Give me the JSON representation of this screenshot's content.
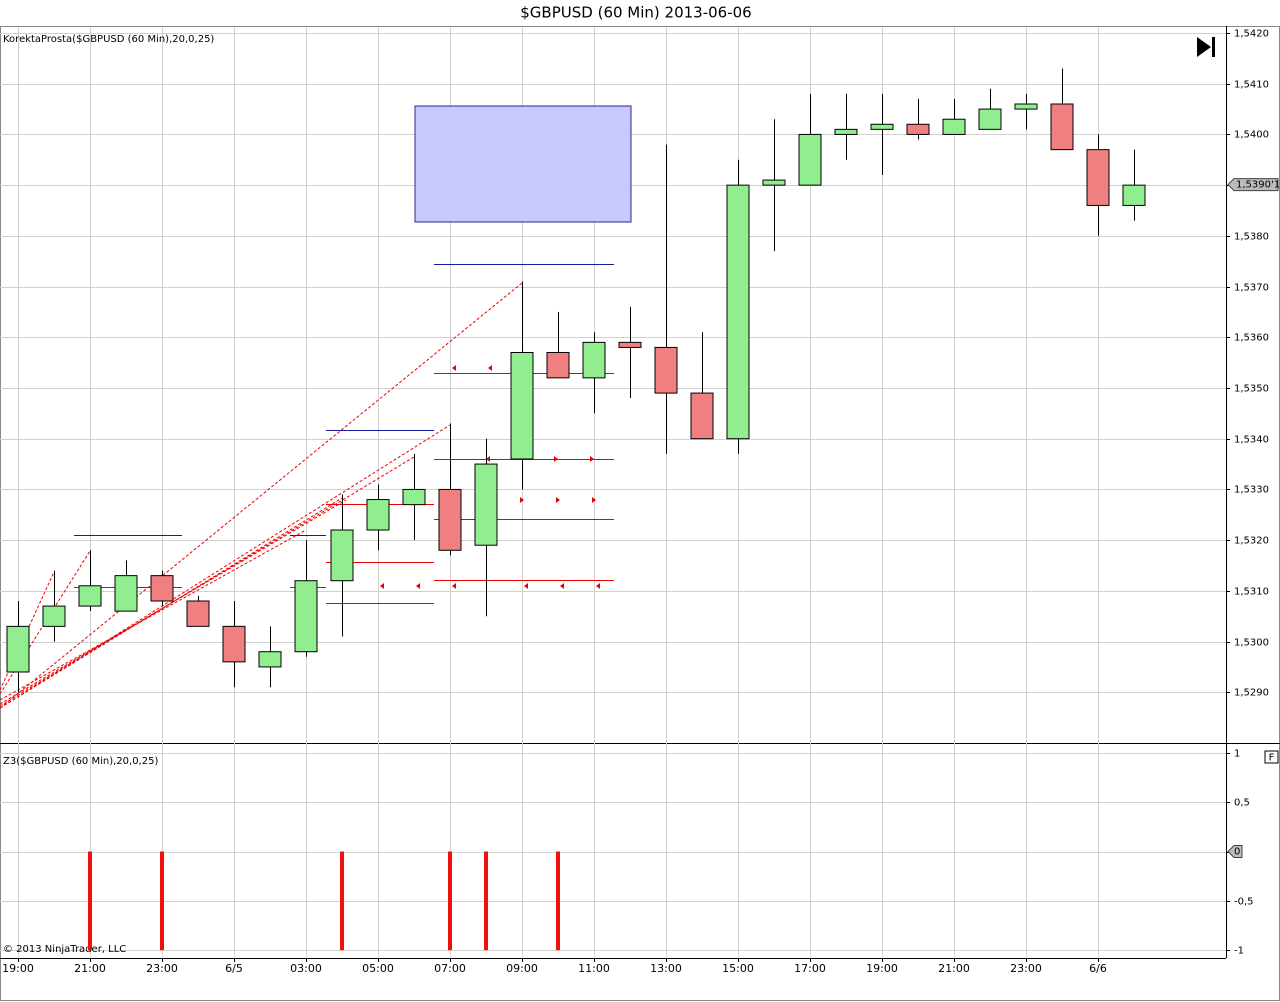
{
  "title": "$GBPUSD (60 Min)  2013-06-06",
  "copyright": "© 2013 NinjaTrader, LLC",
  "panel_button": "F",
  "chart_data": [
    {
      "type": "candlestick",
      "label": "KorektaProsta($GBPUSD (60 Min),20,0,25)",
      "categories": [
        "19:00",
        null,
        "21:00",
        null,
        "23:00",
        null,
        "6/5",
        null,
        "03:00",
        null,
        "05:00",
        null,
        "07:00",
        null,
        "09:00",
        null,
        "11:00",
        null,
        "13:00",
        null,
        "15:00",
        null,
        "17:00",
        null,
        "19:00",
        null,
        "21:00",
        null,
        "23:00",
        null,
        "6/6",
        null
      ],
      "open": [
        1.5294,
        1.5303,
        1.5307,
        1.5306,
        1.5313,
        1.5308,
        1.5303,
        1.5295,
        1.5298,
        1.5312,
        1.5322,
        1.5327,
        1.533,
        1.5319,
        1.5336,
        1.5357,
        1.5352,
        1.5359,
        1.5358,
        1.5349,
        1.534,
        1.539,
        1.539,
        1.54,
        1.5401,
        1.5402,
        1.54,
        1.5401,
        1.5405,
        1.5406,
        1.5397,
        1.5386
      ],
      "high": [
        1.5308,
        1.5314,
        1.5318,
        1.5316,
        1.5314,
        1.5309,
        1.5308,
        1.5303,
        1.532,
        1.5329,
        1.5331,
        1.5337,
        1.5343,
        1.534,
        1.5371,
        1.5365,
        1.5361,
        1.5366,
        1.5398,
        1.5361,
        1.5395,
        1.5403,
        1.5408,
        1.5408,
        1.5408,
        1.5407,
        1.5407,
        1.5409,
        1.5408,
        1.5413,
        1.54,
        1.5397
      ],
      "low": [
        1.529,
        1.53,
        1.5306,
        1.5306,
        1.5307,
        1.5303,
        1.5291,
        1.5291,
        1.5297,
        1.5301,
        1.5318,
        1.532,
        1.5317,
        1.5305,
        1.533,
        1.5352,
        1.5345,
        1.5348,
        1.5337,
        1.534,
        1.5337,
        1.5377,
        1.539,
        1.5395,
        1.5392,
        1.5399,
        1.54,
        1.5401,
        1.5401,
        1.5397,
        1.538,
        1.5383
      ],
      "close": [
        1.5303,
        1.5307,
        1.5311,
        1.5313,
        1.5308,
        1.5303,
        1.5296,
        1.5298,
        1.5312,
        1.5322,
        1.5328,
        1.533,
        1.5318,
        1.5335,
        1.5357,
        1.5352,
        1.5359,
        1.5358,
        1.5349,
        1.534,
        1.539,
        1.5391,
        1.54,
        1.5401,
        1.5402,
        1.54,
        1.5403,
        1.5405,
        1.5406,
        1.5397,
        1.5386,
        1.539
      ],
      "up_color": "#90ee90",
      "down_color": "#f08080",
      "ylim": [
        1.528,
        1.542
      ],
      "yticks": [
        {
          "value": 1.529,
          "label": "1,5290"
        },
        {
          "value": 1.53,
          "label": "1,5300"
        },
        {
          "value": 1.531,
          "label": "1,5310"
        },
        {
          "value": 1.532,
          "label": "1,5320"
        },
        {
          "value": 1.533,
          "label": "1,5330"
        },
        {
          "value": 1.534,
          "label": "1,5340"
        },
        {
          "value": 1.535,
          "label": "1,5350"
        },
        {
          "value": 1.536,
          "label": "1,5360"
        },
        {
          "value": 1.537,
          "label": "1,5370"
        },
        {
          "value": 1.538,
          "label": "1,5380"
        },
        {
          "value": 1.539,
          "label": "1,5390"
        },
        {
          "value": 1.54,
          "label": "1,5400"
        },
        {
          "value": 1.541,
          "label": "1,5410"
        },
        {
          "value": 1.542,
          "label": "1,5420"
        }
      ],
      "grid": true,
      "last_price": {
        "value": 1.53901,
        "label": "1,5390'1"
      }
    },
    {
      "type": "bar",
      "label": "Z3($GBPUSD (60 Min),20,0,25)",
      "values": [
        0,
        0,
        -1,
        0,
        -1,
        0,
        0,
        0,
        0,
        -1,
        0,
        0,
        -1,
        -1,
        0,
        -1,
        0,
        0,
        0,
        0,
        0,
        0,
        0,
        0,
        0,
        0,
        0,
        0,
        0,
        0,
        0,
        0
      ],
      "color": "#ee1111",
      "ylim": [
        -1.1,
        1.1
      ],
      "yticks": [
        -1,
        {
          "value": -0.5,
          "label": "-0,5"
        },
        0,
        {
          "value": 0.5,
          "label": "0,5"
        },
        1
      ],
      "grid": true,
      "last_value": 0
    }
  ]
}
